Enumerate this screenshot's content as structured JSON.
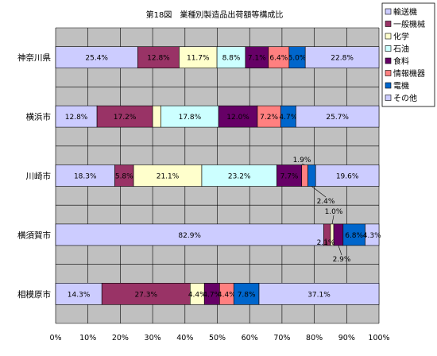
{
  "chart_data": {
    "type": "bar",
    "stacked": true,
    "orientation": "horizontal",
    "title": "第18図　業種別製造品出荷額等構成比",
    "xlim": [
      0,
      100
    ],
    "x_ticks": [
      "0%",
      "10%",
      "20%",
      "30%",
      "40%",
      "50%",
      "60%",
      "70%",
      "80%",
      "90%",
      "100%"
    ],
    "grid": true,
    "legend_position": "top-right",
    "categories": [
      "神奈川県",
      "横浜市",
      "川崎市",
      "横須賀市",
      "相模原市"
    ],
    "series": [
      {
        "name": "輸送機",
        "color": "#ccccff",
        "values": [
          25.4,
          12.8,
          18.3,
          82.9,
          14.3
        ],
        "labels": [
          "25.4%",
          "12.8%",
          "18.3%",
          "82.9%",
          "14.3%"
        ]
      },
      {
        "name": "一般機械",
        "color": "#993366",
        "values": [
          12.8,
          17.2,
          5.8,
          2.1,
          27.3
        ],
        "labels": [
          "12.8%",
          "17.2%",
          "5.8%",
          "2.1%",
          "27.3%"
        ]
      },
      {
        "name": "化学",
        "color": "#ffffcc",
        "values": [
          11.7,
          2.6,
          21.1,
          1.0,
          4.4
        ],
        "labels": [
          "11.7%",
          "2.6%",
          "21.1%",
          "1.0%",
          "4.4%"
        ]
      },
      {
        "name": "石油",
        "color": "#ccffff",
        "values": [
          8.8,
          17.8,
          23.2,
          0,
          0
        ],
        "labels": [
          "8.8%",
          "17.8%",
          "23.2%",
          "",
          ""
        ]
      },
      {
        "name": "食料",
        "color": "#660066",
        "values": [
          7.1,
          12.0,
          7.7,
          2.9,
          4.7
        ],
        "labels": [
          "7.1%",
          "12.0%",
          "7.7%",
          "2.9%",
          "4.7%"
        ]
      },
      {
        "name": "情報機器",
        "color": "#ff8080",
        "values": [
          6.4,
          7.2,
          1.9,
          0,
          4.4
        ],
        "labels": [
          "6.4%",
          "7.2%",
          "1.9%",
          "",
          "4.4%"
        ]
      },
      {
        "name": "電機",
        "color": "#0066cc",
        "values": [
          5.0,
          4.7,
          2.4,
          6.8,
          7.8
        ],
        "labels": [
          "5.0%",
          "4.7%",
          "2.4%",
          "6.8%",
          "7.8%"
        ]
      },
      {
        "name": "その他",
        "color": "#ccccff",
        "values": [
          22.8,
          25.7,
          19.6,
          4.3,
          37.1
        ],
        "labels": [
          "22.8%",
          "25.7%",
          "19.6%",
          "4.3%",
          "37.1%"
        ]
      }
    ]
  }
}
